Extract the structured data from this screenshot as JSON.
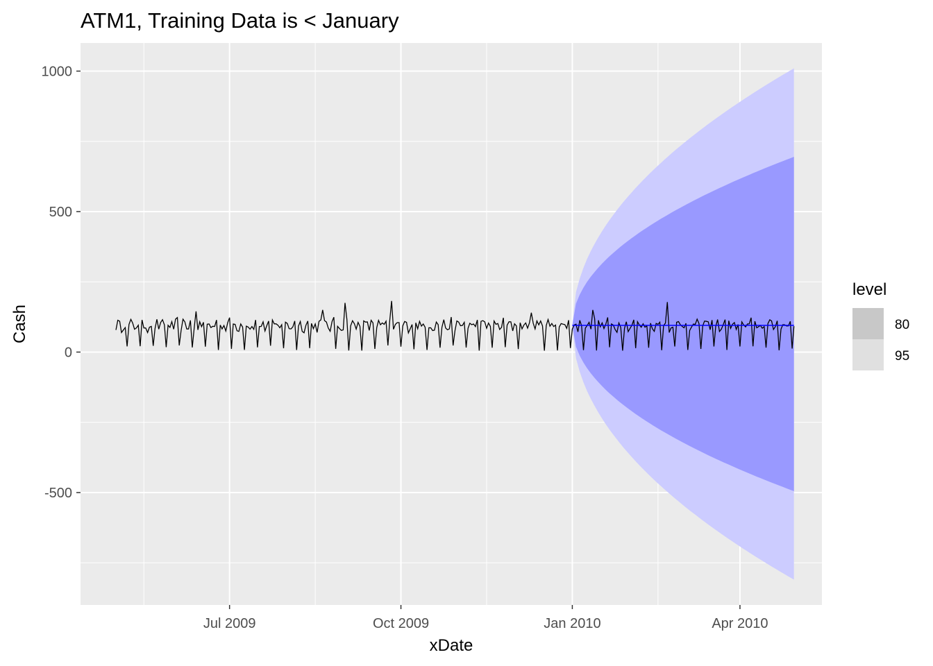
{
  "chart_data": {
    "type": "line",
    "title": "ATM1, Training Data is < January",
    "xlabel": "xDate",
    "ylabel": "Cash",
    "x_axis": {
      "kind": "date",
      "range": [
        "2009-04-12",
        "2010-05-15"
      ],
      "ticks": [
        {
          "date": "2009-07-01",
          "label": "Jul 2009"
        },
        {
          "date": "2009-10-01",
          "label": "Oct 2009"
        },
        {
          "date": "2010-01-01",
          "label": "Jan 2010"
        },
        {
          "date": "2010-04-01",
          "label": "Apr 2010"
        }
      ]
    },
    "y_axis": {
      "range": [
        -900,
        1100
      ],
      "ticks": [
        1000,
        500,
        0,
        -500
      ],
      "tick_labels": [
        "1000",
        "500",
        "0",
        "-500"
      ]
    },
    "grid": true,
    "background": "#ebebeb",
    "series": [
      {
        "role": "observed",
        "color": "#000000",
        "start": "2009-05-01",
        "end": "2010-04-30",
        "weekly_pattern": [
          95,
          100,
          92,
          88,
          98,
          105,
          15
        ],
        "peaks": [
          {
            "date": "2009-06-13",
            "value": 145
          },
          {
            "date": "2009-08-20",
            "value": 150
          },
          {
            "date": "2009-09-01",
            "value": 175
          },
          {
            "date": "2009-09-26",
            "value": 182
          },
          {
            "date": "2009-12-10",
            "value": 140
          },
          {
            "date": "2010-01-12",
            "value": 150
          },
          {
            "date": "2010-02-21",
            "value": 178
          }
        ]
      },
      {
        "role": "forecast",
        "color": "#0000ff",
        "start": "2010-01-01",
        "end": "2010-04-30",
        "value": 95
      }
    ],
    "intervals": [
      {
        "level": "95",
        "color": "#ccccff",
        "start": "2010-01-01",
        "end": "2010-04-30",
        "center": 95,
        "upper_at_end": 1010,
        "lower_at_end": -810
      },
      {
        "level": "80",
        "color": "#9999ff",
        "start": "2010-01-01",
        "end": "2010-04-30",
        "center": 95,
        "upper_at_end": 695,
        "lower_at_end": -495
      }
    ],
    "legend": {
      "title": "level",
      "position": "right",
      "items": [
        {
          "label": "80",
          "color": "#c8c8c8"
        },
        {
          "label": "95",
          "color": "#e0e0e0"
        }
      ]
    }
  }
}
